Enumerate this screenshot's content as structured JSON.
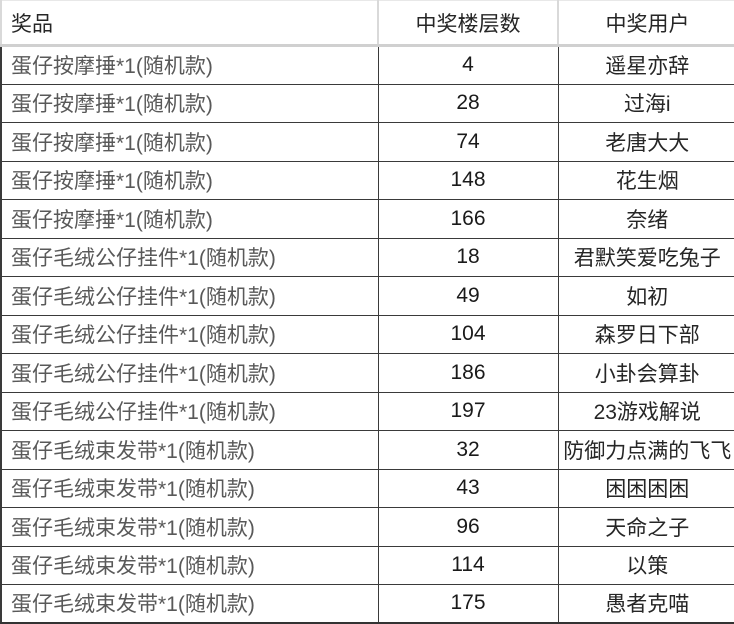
{
  "table": {
    "headers": [
      "奖品",
      "中奖楼层数",
      "中奖用户"
    ],
    "rows": [
      {
        "prize": "蛋仔按摩捶*1(随机款)",
        "floor": 4,
        "user": "遥星亦辞"
      },
      {
        "prize": "蛋仔按摩捶*1(随机款)",
        "floor": 28,
        "user": "过海i"
      },
      {
        "prize": "蛋仔按摩捶*1(随机款)",
        "floor": 74,
        "user": "老唐大大"
      },
      {
        "prize": "蛋仔按摩捶*1(随机款)",
        "floor": 148,
        "user": "花生烟"
      },
      {
        "prize": "蛋仔按摩捶*1(随机款)",
        "floor": 166,
        "user": "奈绪"
      },
      {
        "prize": "蛋仔毛绒公仔挂件*1(随机款)",
        "floor": 18,
        "user": "君默笑爱吃兔子"
      },
      {
        "prize": "蛋仔毛绒公仔挂件*1(随机款)",
        "floor": 49,
        "user": "如初"
      },
      {
        "prize": "蛋仔毛绒公仔挂件*1(随机款)",
        "floor": 104,
        "user": "森罗日下部"
      },
      {
        "prize": "蛋仔毛绒公仔挂件*1(随机款)",
        "floor": 186,
        "user": "小卦会算卦"
      },
      {
        "prize": "蛋仔毛绒公仔挂件*1(随机款)",
        "floor": 197,
        "user": "23游戏解说"
      },
      {
        "prize": "蛋仔毛绒束发带*1(随机款)",
        "floor": 32,
        "user": "防御力点满的飞飞"
      },
      {
        "prize": "蛋仔毛绒束发带*1(随机款)",
        "floor": 43,
        "user": "困困困困"
      },
      {
        "prize": "蛋仔毛绒束发带*1(随机款)",
        "floor": 96,
        "user": "天命之子"
      },
      {
        "prize": "蛋仔毛绒束发带*1(随机款)",
        "floor": 114,
        "user": "以策"
      },
      {
        "prize": "蛋仔毛绒束发带*1(随机款)",
        "floor": 175,
        "user": "愚者克喵"
      }
    ]
  }
}
